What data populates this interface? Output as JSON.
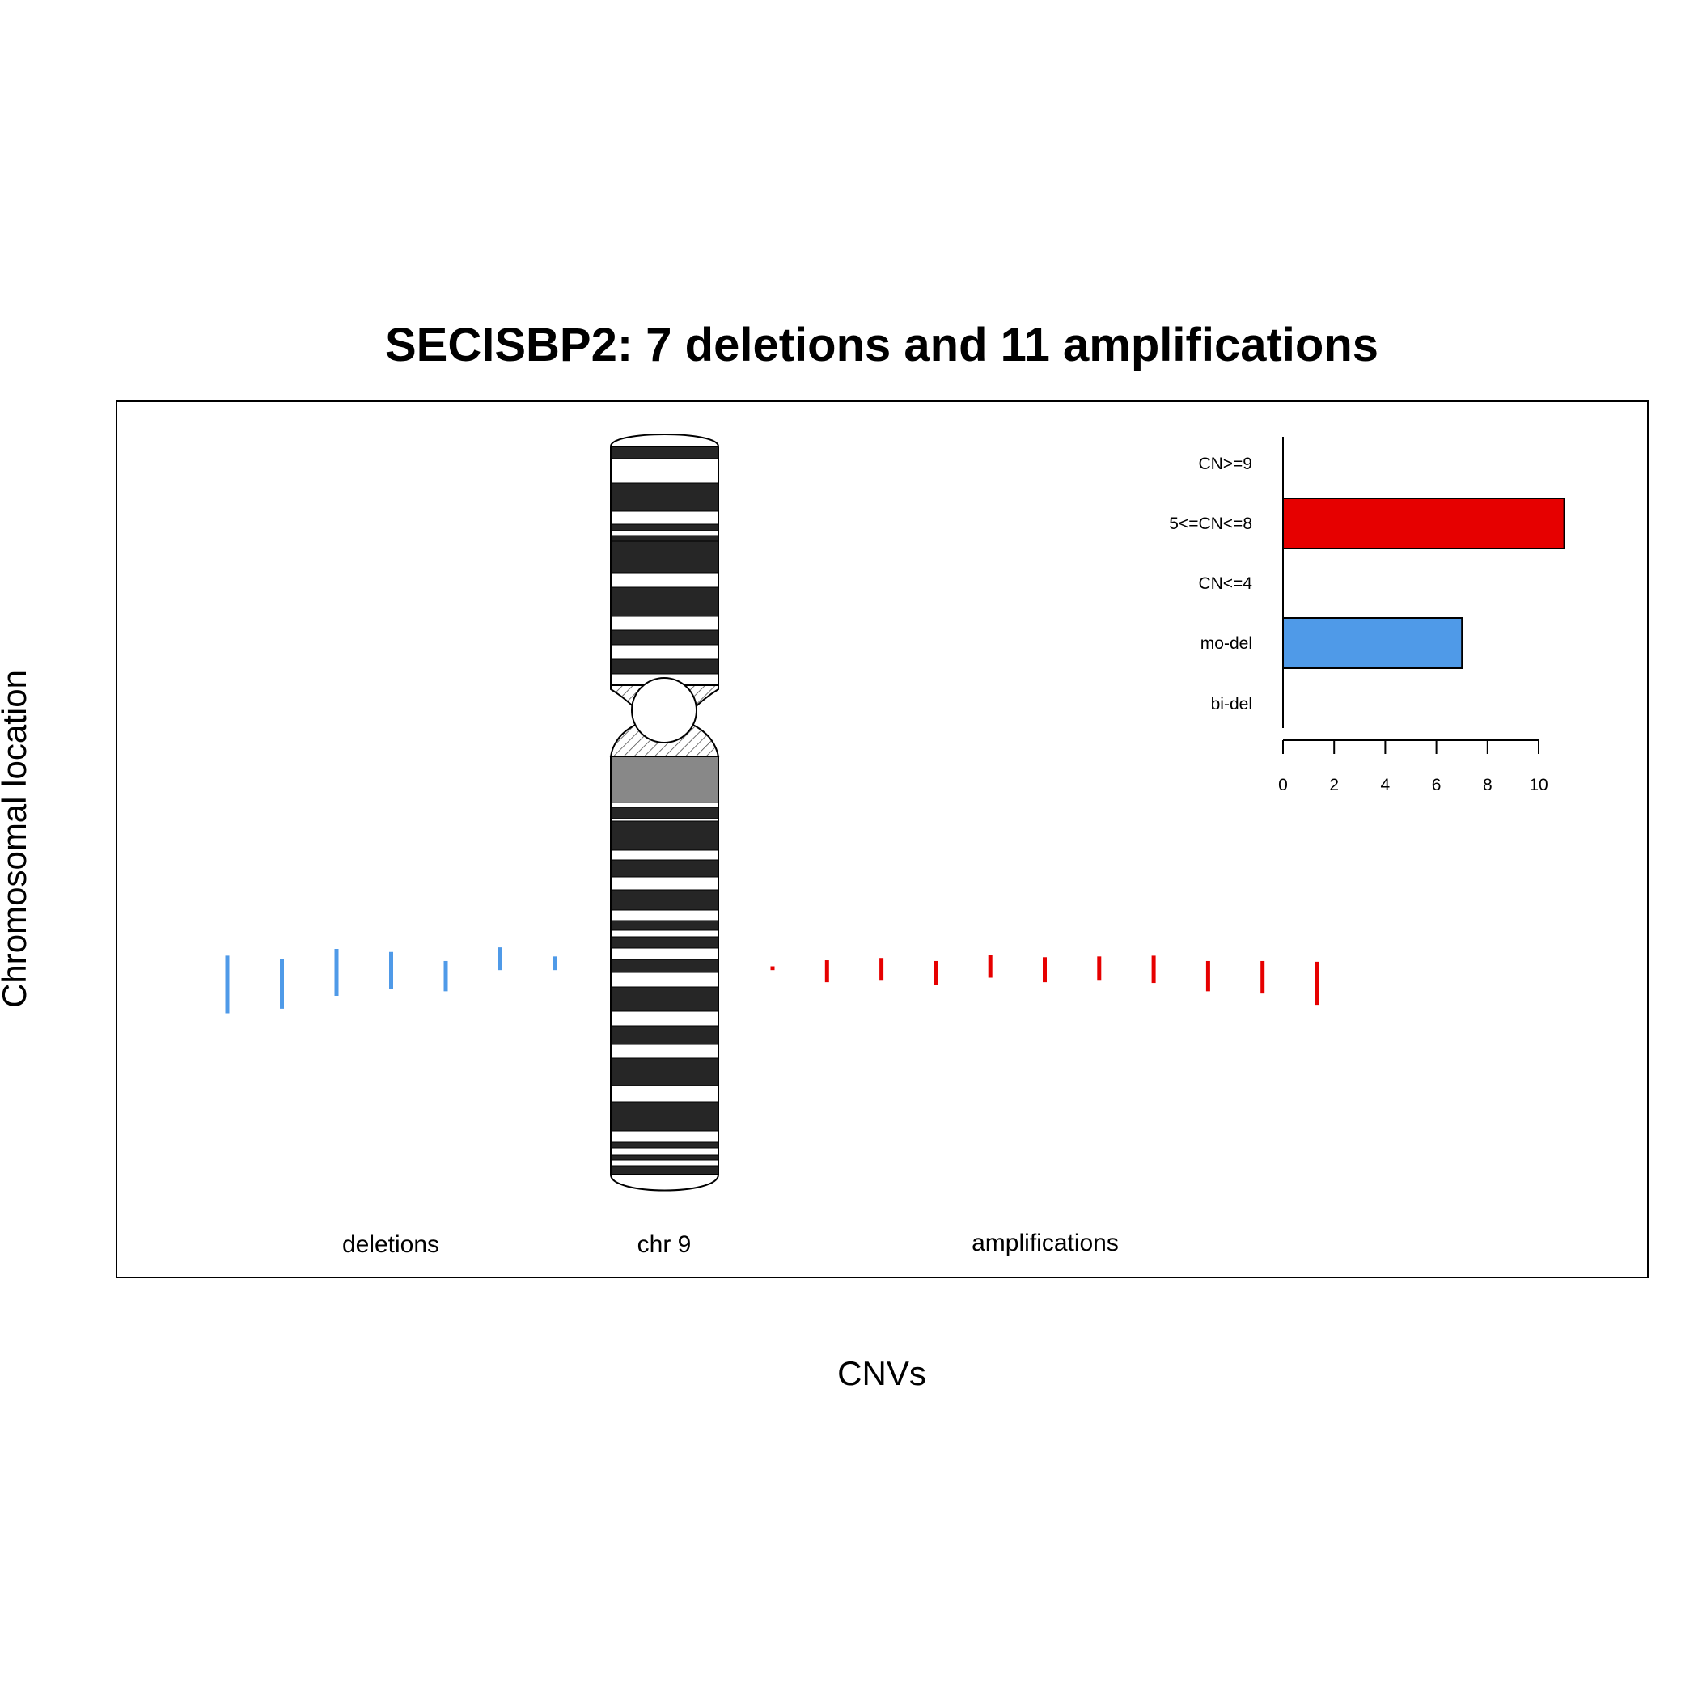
{
  "chart_data": {
    "type": "bar",
    "title": "SECISBP2: 7 deletions and 11 amplifications",
    "xlabel": "CNVs",
    "ylabel": "Chromosomal location",
    "chromosome_label": "chr 9",
    "group_labels": {
      "deletions": "deletions",
      "amplifications": "amplifications"
    },
    "colors": {
      "deletion": "#4f9ae8",
      "amplification": "#e60000"
    },
    "deletions": [
      {
        "start": 0.686,
        "end": 0.762
      },
      {
        "start": 0.69,
        "end": 0.756
      },
      {
        "start": 0.677,
        "end": 0.739
      },
      {
        "start": 0.681,
        "end": 0.73
      },
      {
        "start": 0.693,
        "end": 0.733
      },
      {
        "start": 0.675,
        "end": 0.705
      },
      {
        "start": 0.687,
        "end": 0.705
      }
    ],
    "amplifications": [
      {
        "start": 0.7,
        "end": 0.705
      },
      {
        "start": 0.692,
        "end": 0.721
      },
      {
        "start": 0.689,
        "end": 0.719
      },
      {
        "start": 0.693,
        "end": 0.725
      },
      {
        "start": 0.685,
        "end": 0.715
      },
      {
        "start": 0.688,
        "end": 0.721
      },
      {
        "start": 0.687,
        "end": 0.719
      },
      {
        "start": 0.686,
        "end": 0.722
      },
      {
        "start": 0.693,
        "end": 0.733
      },
      {
        "start": 0.693,
        "end": 0.736
      },
      {
        "start": 0.694,
        "end": 0.751
      }
    ],
    "inset": {
      "categories": [
        "CN>=9",
        "5<=CN<=8",
        "CN<=4",
        "mo-del",
        "bi-del"
      ],
      "values": [
        0,
        11,
        0,
        7,
        0
      ],
      "colors": [
        "#e60000",
        "#e60000",
        "#e60000",
        "#4f9ae8",
        "#4f9ae8"
      ],
      "xticks": [
        0,
        2,
        4,
        6,
        8,
        10
      ],
      "xlim": [
        0,
        11
      ]
    }
  }
}
